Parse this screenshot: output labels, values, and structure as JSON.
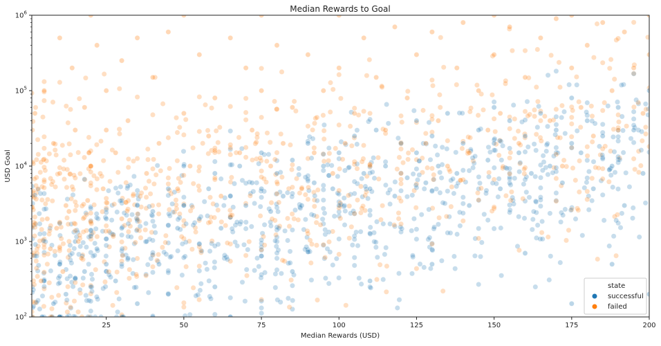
{
  "chart_data": {
    "type": "scatter",
    "title": "Median Rewards to Goal",
    "xlabel": "Median Rewards (USD)",
    "ylabel": "USD Goal",
    "xlim": [
      1,
      200
    ],
    "ylim": [
      100,
      1000000
    ],
    "yscale": "log",
    "grid": false,
    "x_ticks": [
      25,
      50,
      75,
      100,
      125,
      150,
      175,
      200
    ],
    "y_ticks": [
      {
        "value": 100,
        "base": "10",
        "exp": "2"
      },
      {
        "value": 1000,
        "base": "10",
        "exp": "3"
      },
      {
        "value": 10000,
        "base": "10",
        "exp": "4"
      },
      {
        "value": 100000,
        "base": "10",
        "exp": "5"
      },
      {
        "value": 1000000,
        "base": "10",
        "exp": "6"
      }
    ],
    "legend": {
      "title": "state",
      "placement": "bottom-right",
      "entries": [
        {
          "label": "successful",
          "color": "#1f77b4"
        },
        {
          "label": "failed",
          "color": "#ff7f0e"
        }
      ]
    },
    "series": [
      {
        "name": "successful",
        "color": "#1f77b4",
        "opacity": 0.3,
        "x_range": [
          1,
          200
        ],
        "log10_goal_range": [
          2.0,
          6.0
        ],
        "points": [
          [
            5,
            300
          ],
          [
            8,
            150
          ],
          [
            10,
            500
          ],
          [
            12,
            200
          ],
          [
            15,
            1000
          ],
          [
            18,
            400
          ],
          [
            20,
            250
          ],
          [
            22,
            800
          ],
          [
            25,
            500
          ],
          [
            25,
            2000
          ],
          [
            28,
            300
          ],
          [
            30,
            1500
          ],
          [
            32,
            600
          ],
          [
            35,
            3000
          ],
          [
            38,
            1000
          ],
          [
            40,
            2500
          ],
          [
            42,
            500
          ],
          [
            45,
            5000
          ],
          [
            48,
            1500
          ],
          [
            50,
            3000
          ],
          [
            50,
            10000
          ],
          [
            55,
            2000
          ],
          [
            58,
            5000
          ],
          [
            60,
            8000
          ],
          [
            62,
            1500
          ],
          [
            65,
            4000
          ],
          [
            68,
            10000
          ],
          [
            70,
            3000
          ],
          [
            72,
            6000
          ],
          [
            75,
            5000
          ],
          [
            75,
            15000
          ],
          [
            78,
            2500
          ],
          [
            80,
            8000
          ],
          [
            82,
            4000
          ],
          [
            85,
            12000
          ],
          [
            88,
            3000
          ],
          [
            90,
            20000
          ],
          [
            92,
            6000
          ],
          [
            95,
            10000
          ],
          [
            98,
            5000
          ],
          [
            100,
            15000
          ],
          [
            100,
            3000
          ],
          [
            105,
            25000
          ],
          [
            108,
            8000
          ],
          [
            110,
            5000
          ],
          [
            112,
            30000
          ],
          [
            115,
            10000
          ],
          [
            118,
            4000
          ],
          [
            120,
            20000
          ],
          [
            122,
            7000
          ],
          [
            125,
            15000
          ],
          [
            125,
            40000
          ],
          [
            128,
            6000
          ],
          [
            130,
            25000
          ],
          [
            132,
            10000
          ],
          [
            135,
            50000
          ],
          [
            138,
            8000
          ],
          [
            140,
            20000
          ],
          [
            142,
            3000
          ],
          [
            145,
            30000
          ],
          [
            148,
            12000
          ],
          [
            150,
            20000
          ],
          [
            150,
            60000
          ],
          [
            152,
            5000
          ],
          [
            155,
            40000
          ],
          [
            158,
            15000
          ],
          [
            160,
            25000
          ],
          [
            162,
            8000
          ],
          [
            165,
            50000
          ],
          [
            168,
            10000
          ],
          [
            170,
            30000
          ],
          [
            172,
            6000
          ],
          [
            175,
            20000
          ],
          [
            175,
            80000
          ],
          [
            178,
            15000
          ],
          [
            180,
            40000
          ],
          [
            182,
            5000
          ],
          [
            185,
            25000
          ],
          [
            188,
            10000
          ],
          [
            190,
            60000
          ],
          [
            192,
            3000
          ],
          [
            195,
            30000
          ],
          [
            198,
            8000
          ],
          [
            200,
            100000
          ],
          [
            35,
            150
          ],
          [
            45,
            200
          ],
          [
            60,
            250
          ],
          [
            85,
            400
          ],
          [
            110,
            300
          ],
          [
            130,
            500
          ],
          [
            160,
            700
          ],
          [
            175,
            150
          ],
          [
            188,
            500
          ],
          [
            200,
            200
          ]
        ]
      },
      {
        "name": "failed",
        "color": "#ff7f0e",
        "opacity": 0.3,
        "x_range": [
          1,
          200
        ],
        "log10_goal_range": [
          2.0,
          6.0
        ],
        "points": [
          [
            2,
            50000
          ],
          [
            3,
            5000
          ],
          [
            5,
            100000
          ],
          [
            6,
            2000
          ],
          [
            8,
            20000
          ],
          [
            10,
            500000
          ],
          [
            10,
            8000
          ],
          [
            12,
            3000
          ],
          [
            14,
            200000
          ],
          [
            15,
            30000
          ],
          [
            16,
            1000
          ],
          [
            18,
            60000
          ],
          [
            20,
            1000000
          ],
          [
            20,
            10000
          ],
          [
            22,
            400000
          ],
          [
            24,
            5000
          ],
          [
            25,
            100000
          ],
          [
            25,
            30000
          ],
          [
            28,
            15000
          ],
          [
            30,
            250000
          ],
          [
            30,
            2000
          ],
          [
            32,
            40000
          ],
          [
            35,
            500000
          ],
          [
            38,
            8000
          ],
          [
            40,
            150000
          ],
          [
            42,
            20000
          ],
          [
            45,
            600000
          ],
          [
            48,
            5000
          ],
          [
            50,
            1000000
          ],
          [
            50,
            50000
          ],
          [
            52,
            10000
          ],
          [
            55,
            300000
          ],
          [
            58,
            25000
          ],
          [
            60,
            80000
          ],
          [
            62,
            4000
          ],
          [
            65,
            500000
          ],
          [
            68,
            15000
          ],
          [
            70,
            200000
          ],
          [
            72,
            30000
          ],
          [
            75,
            1000000
          ],
          [
            75,
            100000
          ],
          [
            78,
            10000
          ],
          [
            80,
            400000
          ],
          [
            82,
            20000
          ],
          [
            85,
            60000
          ],
          [
            88,
            5000
          ],
          [
            90,
            300000
          ],
          [
            92,
            15000
          ],
          [
            95,
            100000
          ],
          [
            98,
            8000
          ],
          [
            100,
            1000000
          ],
          [
            100,
            200000
          ],
          [
            102,
            20000
          ],
          [
            105,
            50000
          ],
          [
            108,
            500000
          ],
          [
            110,
            10000
          ],
          [
            112,
            150000
          ],
          [
            115,
            30000
          ],
          [
            118,
            700000
          ],
          [
            120,
            8000
          ],
          [
            122,
            80000
          ],
          [
            125,
            300000
          ],
          [
            128,
            20000
          ],
          [
            130,
            600000
          ],
          [
            132,
            40000
          ],
          [
            135,
            10000
          ],
          [
            138,
            200000
          ],
          [
            140,
            800000
          ],
          [
            142,
            15000
          ],
          [
            145,
            100000
          ],
          [
            148,
            30000
          ],
          [
            150,
            1000000
          ],
          [
            150,
            300000
          ],
          [
            152,
            50000
          ],
          [
            155,
            700000
          ],
          [
            158,
            20000
          ],
          [
            160,
            150000
          ],
          [
            165,
            500000
          ],
          [
            168,
            40000
          ],
          [
            170,
            900000
          ],
          [
            172,
            10000
          ],
          [
            175,
            1000000
          ],
          [
            175,
            200000
          ],
          [
            178,
            60000
          ],
          [
            180,
            400000
          ],
          [
            182,
            25000
          ],
          [
            185,
            800000
          ],
          [
            188,
            100000
          ],
          [
            190,
            30000
          ],
          [
            192,
            600000
          ],
          [
            195,
            200000
          ],
          [
            198,
            50000
          ],
          [
            200,
            1000000
          ],
          [
            200,
            300000
          ],
          [
            4,
            300
          ],
          [
            7,
            800
          ],
          [
            9,
            1500
          ],
          [
            11,
            400
          ],
          [
            13,
            2500
          ],
          [
            17,
            600
          ],
          [
            19,
            3500
          ]
        ]
      }
    ]
  }
}
